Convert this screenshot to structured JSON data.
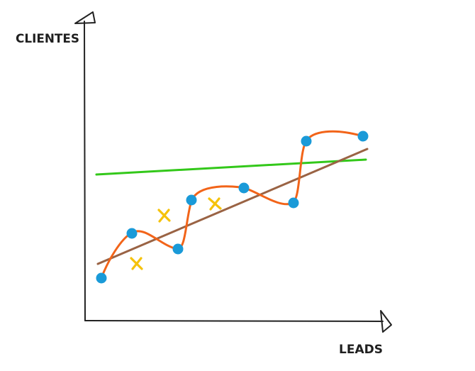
{
  "labels": {
    "y_axis": "CLIENTES",
    "x_axis": "LEADS"
  },
  "colors": {
    "axis": "#222222",
    "points": "#1a9ad8",
    "crosses": "#f5c20a",
    "overfit_curve": "#f26419",
    "fit_line": "#9a6344",
    "flat_line": "#33c81a"
  },
  "icons": {
    "y_arrow": "hand-drawn-triangle-arrow-up",
    "x_arrow": "hand-drawn-triangle-arrow-right",
    "cross": "x-mark"
  }
}
